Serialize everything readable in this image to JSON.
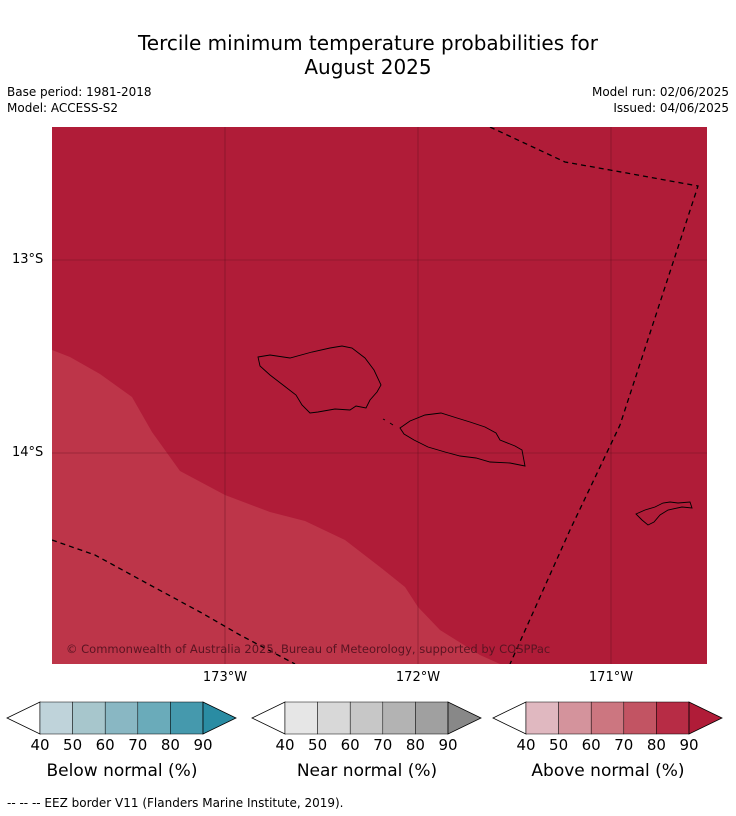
{
  "title_line1": "Tercile minimum temperature probabilities for",
  "title_line2": "August 2025",
  "base_period": "Base period: 1981-2018",
  "model": "Model: ACCESS-S2",
  "model_run": "Model run: 02/06/2025",
  "issued": "Issued: 04/06/2025",
  "lat_labels": [
    "13°S",
    "14°S"
  ],
  "lon_labels": [
    "173°W",
    "172°W",
    "171°W"
  ],
  "copyright": "© Commonwealth of Australia 2025, Bureau of Meteorology, supported by COSPPac",
  "colorbars": [
    {
      "label": "Below normal (%)",
      "ticks": [
        "40",
        "50",
        "60",
        "70",
        "80",
        "90"
      ],
      "colors": [
        "#ffffff",
        "#bfd3da",
        "#a7c6cc",
        "#89b7c3",
        "#6aabba",
        "#4599ad",
        "#2a8ca3"
      ]
    },
    {
      "label": "Near normal (%)",
      "ticks": [
        "40",
        "50",
        "60",
        "70",
        "80",
        "90"
      ],
      "colors": [
        "#ffffff",
        "#e6e6e6",
        "#d8d8d8",
        "#c7c7c7",
        "#b3b3b3",
        "#a0a0a0",
        "#888888"
      ]
    },
    {
      "label": "Above normal (%)",
      "ticks": [
        "40",
        "50",
        "60",
        "70",
        "80",
        "90"
      ],
      "colors": [
        "#ffffff",
        "#e0b8c0",
        "#d4939c",
        "#cc7680",
        "#c25463",
        "#b72c45",
        "#b01c38"
      ]
    }
  ],
  "footer": "--  --  -- EEZ border V11 (Flanders Marine Institute, 2019).",
  "colors": {
    "above_90": "#b01c38",
    "above_80": "#bd3549"
  }
}
